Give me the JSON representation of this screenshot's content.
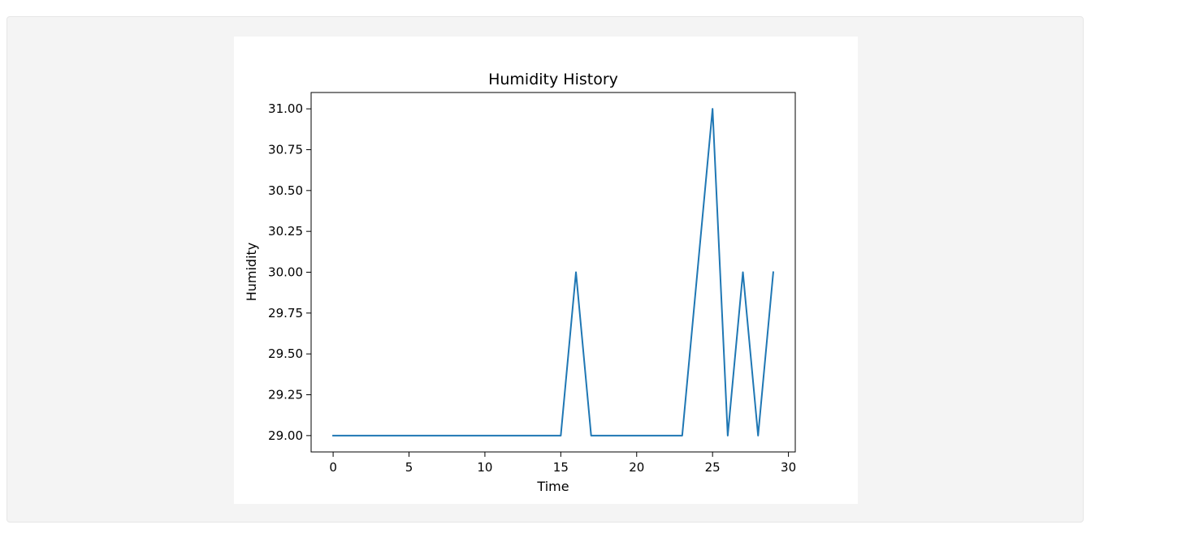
{
  "colors": {
    "panel_background": "#f4f4f4",
    "figure_background": "#ffffff",
    "line": "#1f77b4",
    "axes": "#000000"
  },
  "chart_data": {
    "type": "line",
    "title": "Humidity History",
    "xlabel": "Time",
    "ylabel": "Humidity",
    "xlim": [
      -1.45,
      30.45
    ],
    "ylim": [
      28.9,
      31.1
    ],
    "xticks": [
      0,
      5,
      10,
      15,
      20,
      25,
      30
    ],
    "yticks": [
      29.0,
      29.25,
      29.5,
      29.75,
      30.0,
      30.25,
      30.5,
      30.75,
      31.0
    ],
    "xtick_labels": [
      "0",
      "5",
      "10",
      "15",
      "20",
      "25",
      "30"
    ],
    "ytick_labels": [
      "29.00",
      "29.25",
      "29.50",
      "29.75",
      "30.00",
      "30.25",
      "30.50",
      "30.75",
      "31.00"
    ],
    "grid": false,
    "series": [
      {
        "x": [
          0,
          1,
          2,
          3,
          4,
          5,
          6,
          7,
          8,
          9,
          10,
          11,
          12,
          13,
          14,
          15,
          16,
          17,
          18,
          19,
          20,
          21,
          22,
          23,
          24,
          25,
          26,
          27,
          28,
          29
        ],
        "values": [
          29,
          29,
          29,
          29,
          29,
          29,
          29,
          29,
          29,
          29,
          29,
          29,
          29,
          29,
          29,
          29,
          30,
          29,
          29,
          29,
          29,
          29,
          29,
          29,
          30,
          31,
          29,
          30,
          29,
          30
        ]
      }
    ]
  }
}
